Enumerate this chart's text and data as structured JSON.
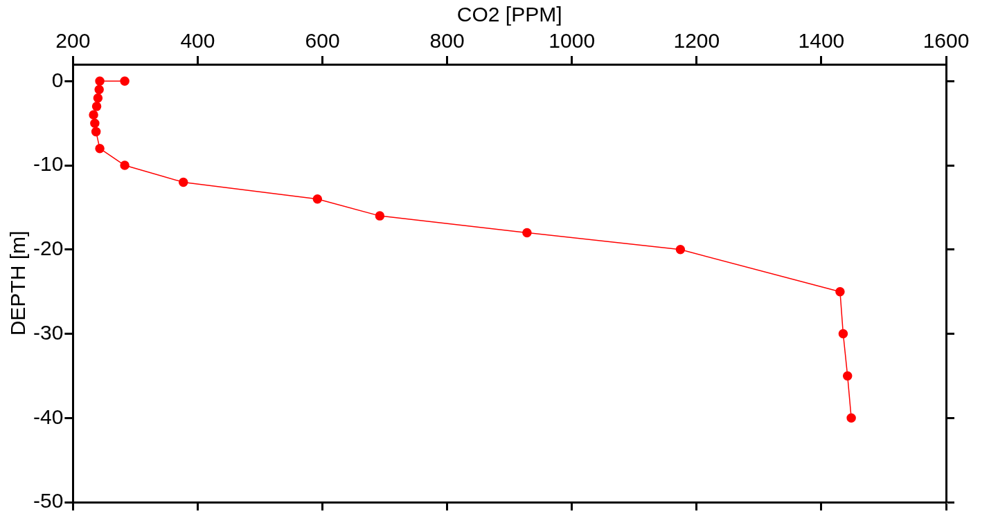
{
  "chart_data": {
    "type": "line",
    "xlabel": "CO2 [PPM]",
    "ylabel": "DEPTH [m]",
    "series": [
      {
        "color": "#ff0000",
        "x": [
          283,
          243,
          242,
          240,
          238,
          233,
          235,
          237,
          243,
          283,
          377,
          592,
          692,
          928,
          1174,
          1430,
          1435,
          1442,
          1448
        ],
        "values": [
          0,
          0,
          -1,
          -2,
          -3,
          -4,
          -5,
          -6,
          -8,
          -10,
          -12,
          -14,
          -16,
          -18,
          -20,
          -25,
          -30,
          -35,
          -40
        ]
      }
    ],
    "xlim": [
      200,
      1600
    ],
    "xticks": [
      200,
      400,
      600,
      800,
      1000,
      1200,
      1400,
      1600
    ],
    "ylim": [
      -50,
      2
    ],
    "yticks": [
      0,
      -10,
      -20,
      -30,
      -40,
      -50
    ],
    "grid": false,
    "legend": false,
    "marker": "circle",
    "line_style": "solid"
  }
}
